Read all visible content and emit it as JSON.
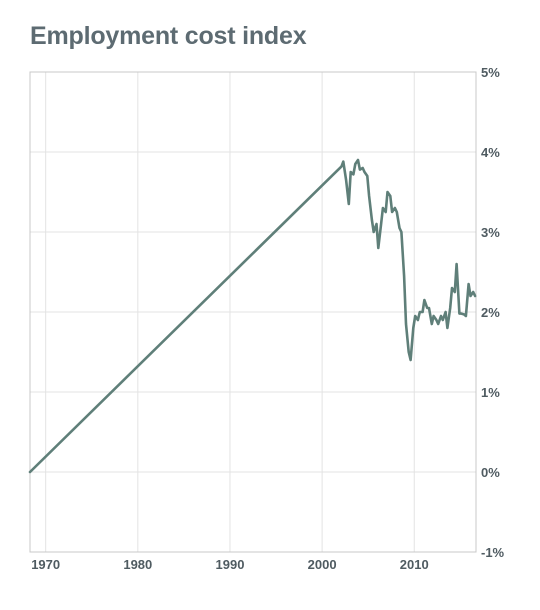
{
  "chart_data": {
    "type": "line",
    "title": "Employment cost index",
    "xlabel": "",
    "ylabel": "",
    "xlim": [
      1968.3,
      2016.7
    ],
    "ylim": [
      -1,
      5
    ],
    "x_ticks": [
      1970,
      1980,
      1990,
      2000,
      2010
    ],
    "x_tick_labels": [
      "1970",
      "1980",
      "1990",
      "2000",
      "2010"
    ],
    "y_ticks": [
      5,
      4,
      3,
      2,
      1,
      0,
      -1
    ],
    "y_tick_labels": [
      "5%",
      "4%",
      "3%",
      "2%",
      "1%",
      "0%",
      "-1%"
    ],
    "y_axis_position": "right",
    "grid": true,
    "legend": "none",
    "colors": {
      "line": "#5f7f79",
      "grid": "#e3e3e3",
      "frame": "#c8c8c8",
      "title": "#5d6b72",
      "tick_text": "#4f5b61"
    },
    "series": [
      {
        "x": [
          1968.3,
          2002.1,
          2002.3,
          2002.6,
          2002.9,
          2003.1,
          2003.4,
          2003.6,
          2003.9,
          2004.1,
          2004.4,
          2004.6,
          2004.9,
          2005.1,
          2005.4,
          2005.6,
          2005.9,
          2006.1,
          2006.4,
          2006.6,
          2006.9,
          2007.1,
          2007.4,
          2007.6,
          2007.9,
          2008.1,
          2008.4,
          2008.6,
          2008.9,
          2009.1,
          2009.4,
          2009.6,
          2009.9,
          2010.1,
          2010.4,
          2010.6,
          2010.9,
          2011.1,
          2011.4,
          2011.6,
          2011.9,
          2012.1,
          2012.4,
          2012.6,
          2012.9,
          2013.1,
          2013.4,
          2013.6,
          2013.9,
          2014.1,
          2014.4,
          2014.6,
          2014.9,
          2015.1,
          2015.4,
          2015.6,
          2015.9,
          2016.1,
          2016.4,
          2016.6
        ],
        "values": [
          0.0,
          3.82,
          3.88,
          3.65,
          3.35,
          3.75,
          3.72,
          3.85,
          3.9,
          3.78,
          3.8,
          3.75,
          3.7,
          3.45,
          3.15,
          3.0,
          3.1,
          2.8,
          3.1,
          3.3,
          3.25,
          3.5,
          3.45,
          3.25,
          3.3,
          3.25,
          3.05,
          3.0,
          2.45,
          1.85,
          1.5,
          1.4,
          1.8,
          1.95,
          1.9,
          2.0,
          2.0,
          2.15,
          2.05,
          2.05,
          1.85,
          1.95,
          1.9,
          1.85,
          1.95,
          1.9,
          2.0,
          1.8,
          2.05,
          2.3,
          2.25,
          2.6,
          1.98,
          1.98,
          1.97,
          1.95,
          2.35,
          2.2,
          2.25,
          2.2
        ]
      }
    ]
  }
}
